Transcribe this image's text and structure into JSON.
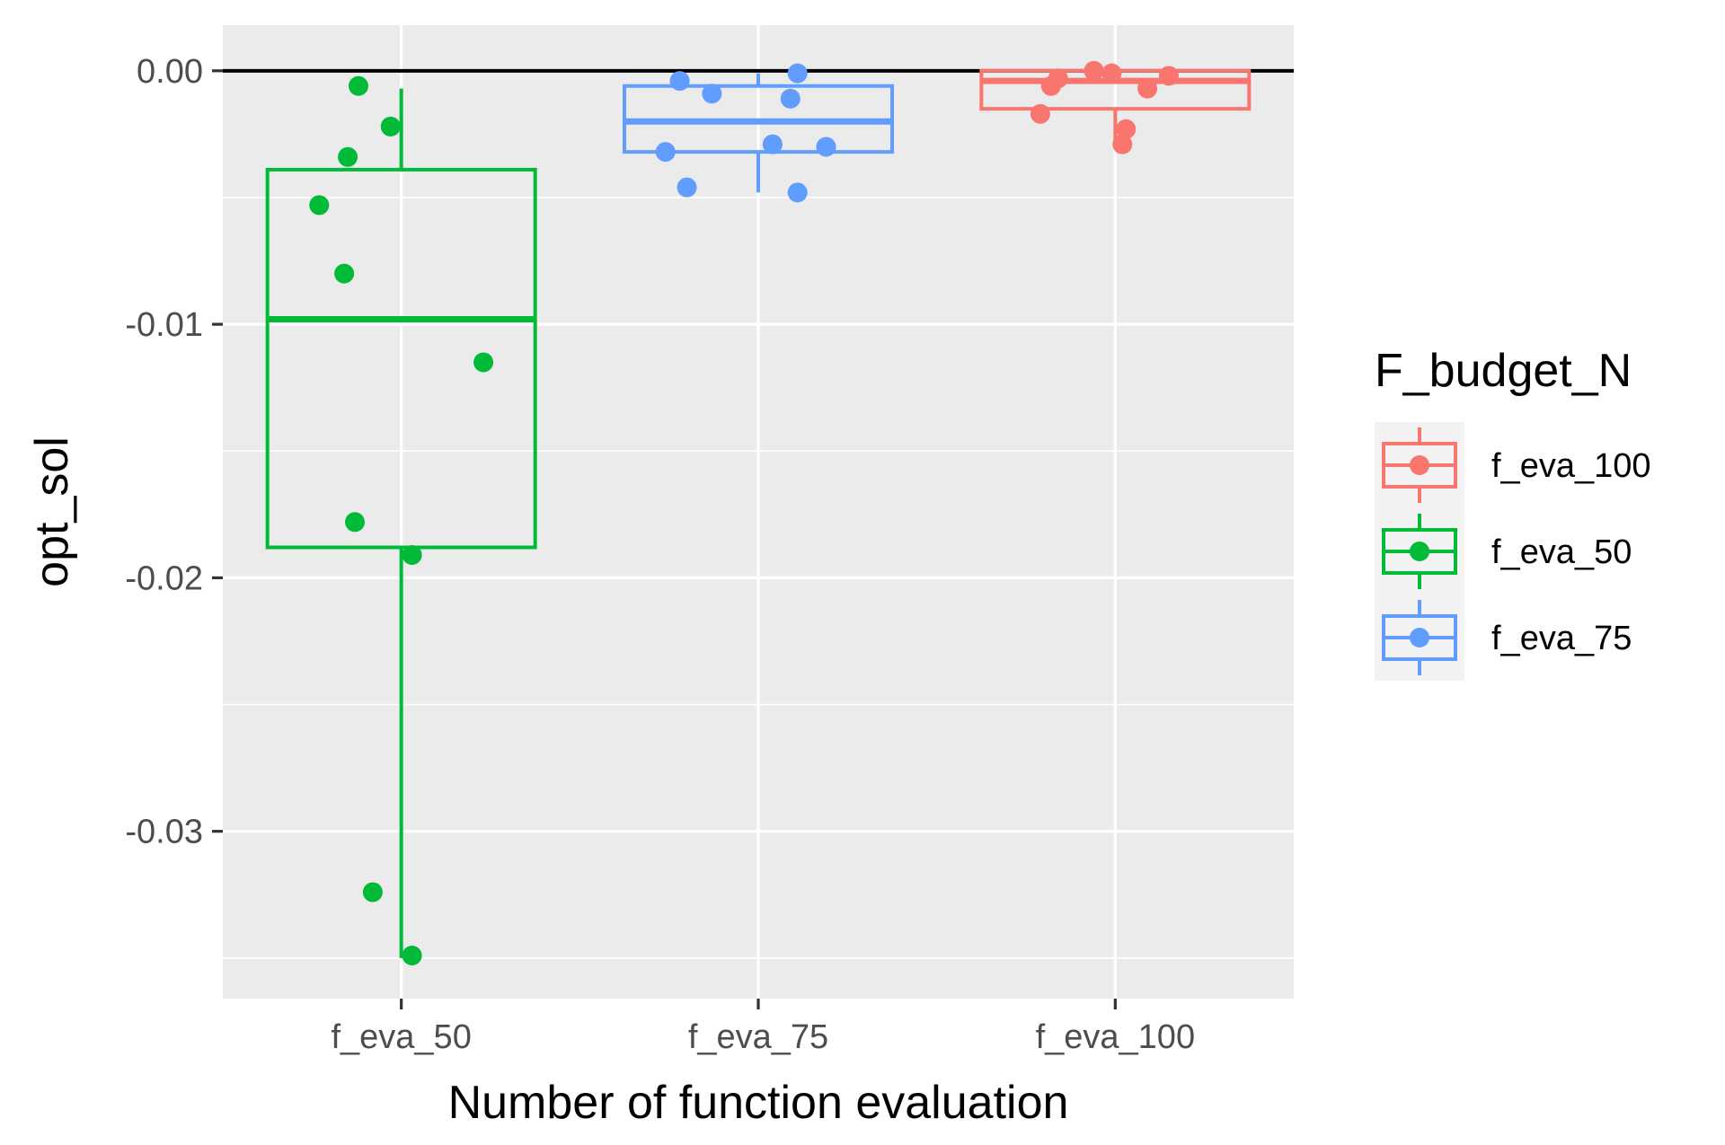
{
  "chart_data": {
    "type": "boxplot",
    "xlabel": "Number of function evaluation",
    "ylabel": "opt_sol",
    "categories": [
      "f_eva_50",
      "f_eva_75",
      "f_eva_100"
    ],
    "yticks": [
      0.0,
      -0.01,
      -0.02,
      -0.03
    ],
    "ytick_labels": [
      "0.00",
      "-0.01",
      "-0.02",
      "-0.03"
    ],
    "ylim": [
      -0.0366,
      0.0018
    ],
    "reference_line": 0.0,
    "grid": true,
    "legend": {
      "title": "F_budget_N",
      "placement": "right",
      "entries": [
        "f_eva_100",
        "f_eva_50",
        "f_eva_75"
      ]
    },
    "series": [
      {
        "name": "f_eva_50",
        "category": "f_eva_50",
        "color": "#00BA38",
        "box": {
          "lower_whisker": -0.035,
          "q1": -0.0188,
          "median": -0.0098,
          "q3": -0.0039,
          "upper_whisker": -0.0007
        },
        "points": [
          {
            "jitter": -0.12,
            "y": -0.0006
          },
          {
            "jitter": -0.03,
            "y": -0.0022
          },
          {
            "jitter": -0.15,
            "y": -0.0034
          },
          {
            "jitter": -0.23,
            "y": -0.0053
          },
          {
            "jitter": -0.16,
            "y": -0.008
          },
          {
            "jitter": 0.23,
            "y": -0.0115
          },
          {
            "jitter": -0.13,
            "y": -0.0178
          },
          {
            "jitter": 0.03,
            "y": -0.0191
          },
          {
            "jitter": -0.08,
            "y": -0.0324
          },
          {
            "jitter": 0.03,
            "y": -0.0349
          }
        ]
      },
      {
        "name": "f_eva_75",
        "category": "f_eva_75",
        "color": "#619CFF",
        "box": {
          "lower_whisker": -0.0048,
          "q1": -0.0032,
          "median": -0.002,
          "q3": -0.0006,
          "upper_whisker": -0.0001
        },
        "points": [
          {
            "jitter": 0.11,
            "y": -0.0001
          },
          {
            "jitter": -0.22,
            "y": -0.0004
          },
          {
            "jitter": -0.13,
            "y": -0.0009
          },
          {
            "jitter": 0.09,
            "y": -0.0011
          },
          {
            "jitter": 0.04,
            "y": -0.0029
          },
          {
            "jitter": 0.19,
            "y": -0.003
          },
          {
            "jitter": -0.26,
            "y": -0.0032
          },
          {
            "jitter": -0.2,
            "y": -0.0046
          },
          {
            "jitter": 0.11,
            "y": -0.0048
          }
        ]
      },
      {
        "name": "f_eva_100",
        "category": "f_eva_100",
        "color": "#F8766D",
        "box": {
          "lower_whisker": -0.003,
          "q1": -0.0015,
          "median": -0.0004,
          "q3": 0.0,
          "upper_whisker": 0.0
        },
        "points": [
          {
            "jitter": -0.06,
            "y": 0.0
          },
          {
            "jitter": -0.01,
            "y": -0.0001
          },
          {
            "jitter": 0.15,
            "y": -0.0002
          },
          {
            "jitter": -0.16,
            "y": -0.0003
          },
          {
            "jitter": -0.18,
            "y": -0.0006
          },
          {
            "jitter": 0.09,
            "y": -0.0007
          },
          {
            "jitter": -0.21,
            "y": -0.0017
          },
          {
            "jitter": 0.03,
            "y": -0.0023
          },
          {
            "jitter": 0.02,
            "y": -0.0029
          }
        ]
      }
    ]
  }
}
